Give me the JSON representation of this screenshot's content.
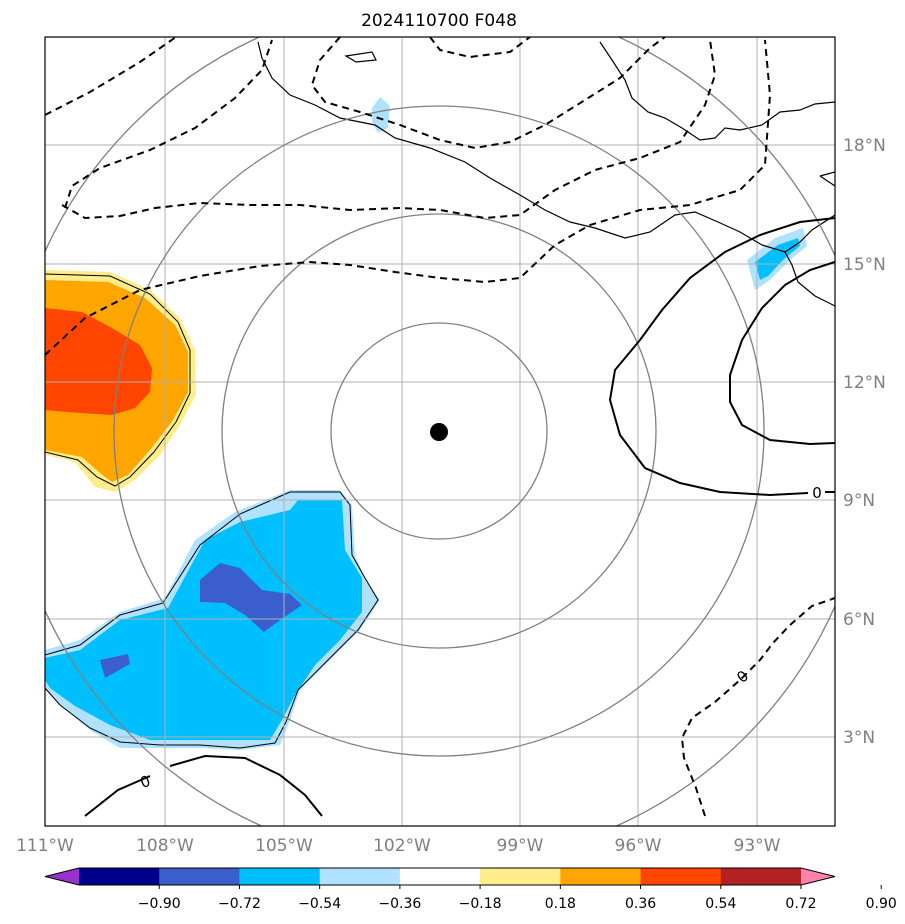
{
  "title": "2024110700 F048",
  "map": {
    "lon_labels": [
      "111°W",
      "108°W",
      "105°W",
      "102°W",
      "99°W",
      "96°W",
      "93°W"
    ],
    "lat_labels": [
      "18°N",
      "15°N",
      "12°N",
      "9°N",
      "6°N",
      "3°N"
    ],
    "center_marker": {
      "lon": -101.0,
      "lat": 10.7
    },
    "range_rings": 4,
    "contour_labels": [
      "0",
      "0",
      "0"
    ]
  },
  "colorbar": {
    "ticks": [
      "−0.90",
      "−0.72",
      "−0.54",
      "−0.36",
      "−0.18",
      "0.18",
      "0.36",
      "0.54",
      "0.72",
      "0.90"
    ],
    "colors": [
      "#9932CC",
      "#00008B",
      "#3A5FCD",
      "#00BFFF",
      "#B0E2FF",
      "#FFFFFF",
      "#FFEC8B",
      "#FFA500",
      "#FF4500",
      "#B22222",
      "#FF82AB"
    ]
  }
}
